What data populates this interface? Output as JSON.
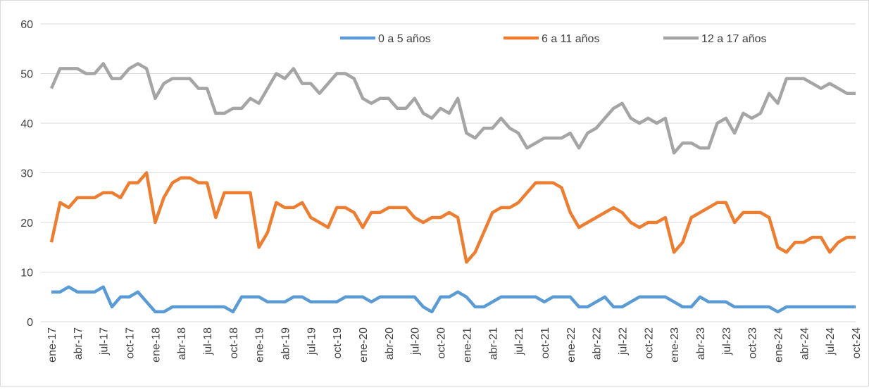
{
  "chart_data": {
    "type": "line",
    "categories": [
      "ene-17",
      null,
      null,
      "abr-17",
      null,
      null,
      "jul-17",
      null,
      null,
      "oct-17",
      null,
      null,
      "ene-18",
      null,
      null,
      "abr-18",
      null,
      null,
      "jul-18",
      null,
      null,
      "oct-18",
      null,
      null,
      "ene-19",
      null,
      null,
      "abr-19",
      null,
      null,
      "jul-19",
      null,
      null,
      "oct-19",
      null,
      null,
      "ene-20",
      null,
      null,
      "abr-20",
      null,
      null,
      "jul-20",
      null,
      null,
      "oct-20",
      null,
      null,
      "ene-21",
      null,
      null,
      "abr-21",
      null,
      null,
      "jul-21",
      null,
      null,
      "oct-21",
      null,
      null,
      "ene-22",
      null,
      null,
      "abr-22",
      null,
      null,
      "jul-22",
      null,
      null,
      "oct-22",
      null,
      null,
      "ene-23",
      null,
      null,
      "abr-23",
      null,
      null,
      "jul-23",
      null,
      null,
      "oct-23",
      null,
      null,
      "ene-24",
      null,
      null,
      "abr-24",
      null,
      null,
      "jul-24",
      null,
      null,
      "oct-24"
    ],
    "series": [
      {
        "name": "0 a 5 años",
        "color": "#5b9bd5",
        "values": [
          6,
          6,
          7,
          6,
          6,
          6,
          7,
          3,
          5,
          5,
          6,
          4,
          2,
          2,
          3,
          3,
          3,
          3,
          3,
          3,
          3,
          2,
          5,
          5,
          5,
          4,
          4,
          4,
          5,
          5,
          4,
          4,
          4,
          4,
          5,
          5,
          5,
          4,
          5,
          5,
          5,
          5,
          5,
          3,
          2,
          5,
          5,
          6,
          5,
          3,
          3,
          4,
          5,
          5,
          5,
          5,
          5,
          4,
          5,
          5,
          5,
          3,
          3,
          4,
          5,
          3,
          3,
          4,
          5,
          5,
          5,
          5,
          4,
          3,
          3,
          5,
          4,
          4,
          4,
          3,
          3,
          3,
          3,
          3,
          2,
          3,
          3,
          3,
          3,
          3,
          3,
          3,
          3,
          3
        ]
      },
      {
        "name": "6 a 11 años",
        "color": "#ed7d31",
        "values": [
          16,
          24,
          23,
          25,
          25,
          25,
          26,
          26,
          25,
          28,
          28,
          30,
          20,
          25,
          28,
          29,
          29,
          28,
          28,
          21,
          26,
          26,
          26,
          26,
          15,
          18,
          24,
          23,
          23,
          24,
          21,
          20,
          19,
          23,
          23,
          22,
          19,
          22,
          22,
          23,
          23,
          23,
          21,
          20,
          21,
          21,
          22,
          21,
          12,
          14,
          18,
          22,
          23,
          23,
          24,
          26,
          28,
          28,
          28,
          27,
          22,
          19,
          20,
          21,
          22,
          23,
          22,
          20,
          19,
          20,
          20,
          21,
          14,
          16,
          21,
          22,
          23,
          24,
          24,
          20,
          22,
          22,
          22,
          21,
          15,
          14,
          16,
          16,
          17,
          17,
          14,
          16,
          17,
          17
        ]
      },
      {
        "name": "12 a 17 años",
        "color": "#a5a5a5",
        "values": [
          47,
          51,
          51,
          51,
          50,
          50,
          52,
          49,
          49,
          51,
          52,
          51,
          45,
          48,
          49,
          49,
          49,
          47,
          47,
          42,
          42,
          43,
          43,
          45,
          44,
          47,
          50,
          49,
          51,
          48,
          48,
          46,
          48,
          50,
          50,
          49,
          45,
          44,
          45,
          45,
          43,
          43,
          45,
          42,
          41,
          43,
          42,
          45,
          38,
          37,
          39,
          39,
          41,
          39,
          38,
          35,
          36,
          37,
          37,
          37,
          38,
          35,
          38,
          39,
          41,
          43,
          44,
          41,
          40,
          41,
          40,
          41,
          34,
          36,
          36,
          35,
          35,
          40,
          41,
          38,
          42,
          41,
          42,
          46,
          44,
          49,
          49,
          49,
          48,
          47,
          48,
          47,
          46,
          46
        ]
      }
    ],
    "ylim": [
      0,
      60
    ],
    "yticks": [
      0,
      10,
      20,
      30,
      40,
      50,
      60
    ],
    "grid": true,
    "legend": "top"
  }
}
